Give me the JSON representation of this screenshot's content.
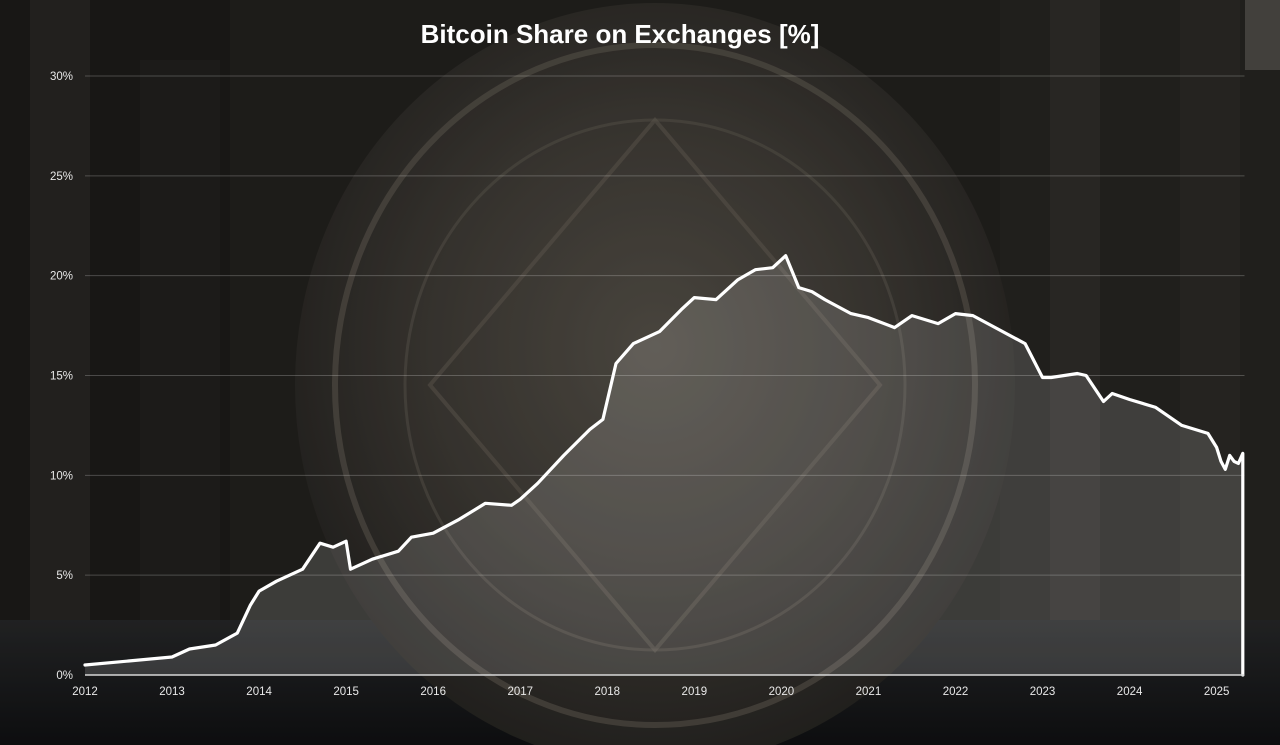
{
  "chart_data": {
    "type": "area",
    "title": "Bitcoin Share on Exchanges [%]",
    "xlabel": "",
    "ylabel": "",
    "xlim": [
      2012,
      2025.32
    ],
    "ylim": [
      0,
      30
    ],
    "grid": "horizontal",
    "legend": "none",
    "y_ticks": [
      0,
      5,
      10,
      15,
      20,
      25,
      30
    ],
    "y_tick_labels": [
      "0%",
      "5%",
      "10%",
      "15%",
      "20%",
      "25%",
      "30%"
    ],
    "x_ticks": [
      2012,
      2013,
      2014,
      2015,
      2016,
      2017,
      2018,
      2019,
      2020,
      2021,
      2022,
      2023,
      2024,
      2025
    ],
    "x_tick_labels": [
      "2012",
      "2013",
      "2014",
      "2015",
      "2016",
      "2017",
      "2018",
      "2019",
      "2020",
      "2021",
      "2022",
      "2023",
      "2024",
      "2025"
    ],
    "colors": {
      "line": "#ffffff",
      "area": "rgba(255,255,255,0.14)",
      "grid": "rgba(255,255,255,0.22)"
    },
    "series": [
      {
        "x": [
          2012.0,
          2012.5,
          2013.0,
          2013.2,
          2013.5,
          2013.75,
          2013.9,
          2014.0,
          2014.2,
          2014.5,
          2014.7,
          2014.85,
          2015.0,
          2015.05,
          2015.3,
          2015.6,
          2015.75,
          2016.0,
          2016.3,
          2016.6,
          2016.9,
          2017.0,
          2017.2,
          2017.5,
          2017.8,
          2017.95,
          2018.1,
          2018.3,
          2018.6,
          2018.85,
          2019.0,
          2019.25,
          2019.5,
          2019.7,
          2019.9,
          2020.05,
          2020.2,
          2020.35,
          2020.5,
          2020.8,
          2021.0,
          2021.3,
          2021.5,
          2021.8,
          2022.0,
          2022.2,
          2022.5,
          2022.8,
          2023.0,
          2023.1,
          2023.4,
          2023.5,
          2023.7,
          2023.8,
          2024.0,
          2024.3,
          2024.6,
          2024.9,
          2025.0,
          2025.05,
          2025.1,
          2025.15,
          2025.2,
          2025.25,
          2025.3
        ],
        "y": [
          0.5,
          0.7,
          0.9,
          1.3,
          1.5,
          2.1,
          3.5,
          4.2,
          4.7,
          5.3,
          6.6,
          6.4,
          6.7,
          5.3,
          5.8,
          6.2,
          6.9,
          7.1,
          7.8,
          8.6,
          8.5,
          8.8,
          9.6,
          11.0,
          12.3,
          12.8,
          15.6,
          16.6,
          17.2,
          18.3,
          18.9,
          18.8,
          19.8,
          20.3,
          20.4,
          21.0,
          19.4,
          19.2,
          18.8,
          18.1,
          17.9,
          17.4,
          18.0,
          17.6,
          18.1,
          18.0,
          17.3,
          16.6,
          14.9,
          14.9,
          15.1,
          15.0,
          13.7,
          14.1,
          13.8,
          13.4,
          12.5,
          12.1,
          11.4,
          10.7,
          10.3,
          11.0,
          10.7,
          10.6,
          11.1
        ]
      }
    ]
  }
}
